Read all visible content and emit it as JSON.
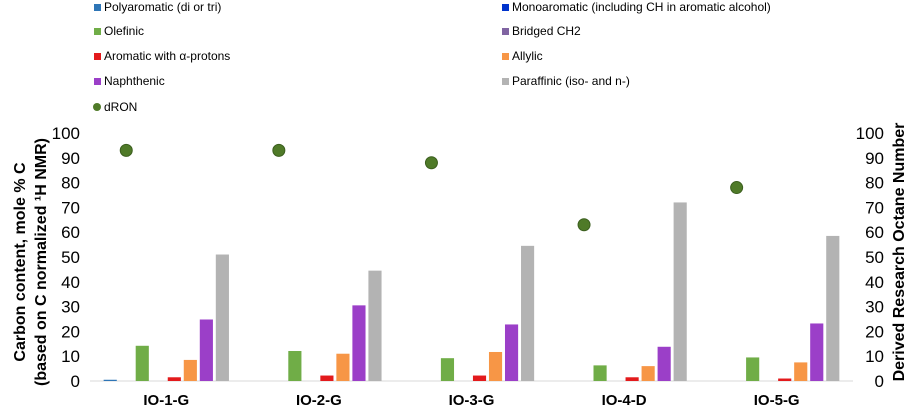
{
  "chart_data": {
    "type": "bar",
    "title": "",
    "categories": [
      "IO-1-G",
      "IO-2-G",
      "IO-3-G",
      "IO-4-D",
      "IO-5-G"
    ],
    "ylabel_line1": "Carbon content, mole % C",
    "ylabel_line2": "(based on C normalized ¹H NMR)",
    "y2label": "Derived Research Octane Number",
    "ylim": [
      0,
      100
    ],
    "y2lim": [
      0,
      100
    ],
    "yticks": [
      "0",
      "10",
      "20",
      "30",
      "40",
      "50",
      "60",
      "70",
      "80",
      "90",
      "100"
    ],
    "y2ticks": [
      "0",
      "10",
      "20",
      "30",
      "40",
      "50",
      "60",
      "70",
      "80",
      "90",
      "100"
    ],
    "series": [
      {
        "name": "Polyaromatic  (di or tri)",
        "color": "#2e75b6",
        "values": [
          0.5,
          0,
          0,
          0,
          0
        ]
      },
      {
        "name": "Monoaromatic (including CH in aromatic alcohol)",
        "color": "#0033cc",
        "values": [
          0,
          0,
          0,
          0,
          0
        ]
      },
      {
        "name": "Olefinic",
        "color": "#70ad47",
        "values": [
          14.2,
          12.1,
          9.2,
          6.3,
          9.5
        ]
      },
      {
        "name": "Bridged CH2",
        "color": "#8064a2",
        "values": [
          0,
          0,
          0,
          0,
          0
        ]
      },
      {
        "name": "Aromatic with α-protons",
        "color": "#e31a1c",
        "values": [
          1.5,
          2.2,
          2.2,
          1.5,
          1.0
        ]
      },
      {
        "name": "Allylic",
        "color": "#f79646",
        "values": [
          8.5,
          11.0,
          11.7,
          6.0,
          7.5
        ]
      },
      {
        "name": "Naphthenic",
        "color": "#9b3fc8",
        "values": [
          24.8,
          30.5,
          22.8,
          13.8,
          23.2
        ]
      },
      {
        "name": "Paraffinic (iso- and n-)",
        "color": "#b3b3b3",
        "values": [
          51.0,
          44.5,
          54.5,
          72.0,
          58.5
        ]
      }
    ],
    "scatter_series": {
      "name": "dRON",
      "color": "#4f7a28",
      "axis": "secondary",
      "values": [
        93,
        93,
        88,
        63,
        78
      ]
    },
    "legend_position": "top"
  }
}
